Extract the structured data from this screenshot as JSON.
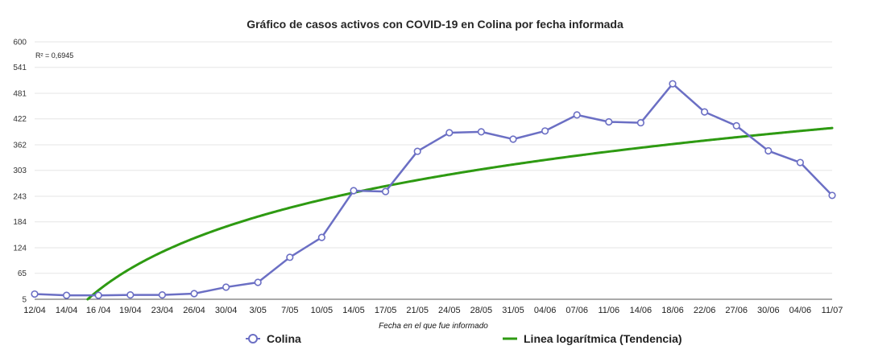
{
  "chart_data": {
    "type": "line",
    "title": "Gráfico de casos activos con COVID-19 en Colina por fecha informada",
    "xlabel": "Fecha en el que fue informado",
    "ylabel": "",
    "annotation": "R² = 0,6945",
    "y_ticks": [
      "5",
      "65",
      "124",
      "184",
      "243",
      "303",
      "362",
      "422",
      "481",
      "541",
      "600"
    ],
    "ylim": [
      5,
      600
    ],
    "grid": true,
    "legend_position": "bottom",
    "categories": [
      "12/04",
      "14/04",
      "16 /04",
      "19/04",
      "23/04",
      "26/04",
      "30/04",
      "3/05",
      "7/05",
      "10/05",
      "14/05",
      "17/05",
      "21/05",
      "24/05",
      "28/05",
      "31/05",
      "04/06",
      "07/06",
      "11/06",
      "14/06",
      "18/06",
      "22/06",
      "27/06",
      "30/06",
      "04/06",
      "11/07"
    ],
    "series": [
      {
        "name": "Colina",
        "color": "#6b6fc4",
        "marker": "circle",
        "values": [
          17,
          14,
          14,
          15,
          15,
          18,
          33,
          44,
          102,
          148,
          256,
          254,
          347,
          390,
          392,
          375,
          394,
          431,
          415,
          413,
          503,
          438,
          406,
          348,
          321,
          245
        ]
      },
      {
        "name": "Linea logarítmica (Tendencia)",
        "color": "#2e9a12",
        "trend": "logarithmic"
      }
    ]
  }
}
